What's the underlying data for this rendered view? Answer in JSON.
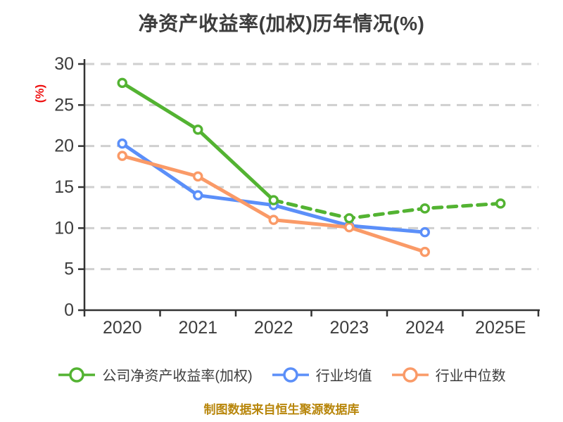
{
  "title": "净资产收益率(加权)历年情况(%)",
  "caption": "制图数据来自恒生聚源数据库",
  "colors": {
    "title_text": "#3d3d3d",
    "axis": "#333333",
    "tick_label": "#3d3d3d",
    "gridline": "#cfcfcf",
    "ylabel_red": "#ee1111",
    "caption_gold": "#b8860b",
    "series_company_green": "#53b332",
    "series_avg_blue": "#5b8ff9",
    "series_median_orange": "#fa9a67",
    "marker_fill": "#ffffff",
    "background": "#ffffff"
  },
  "chart_data": {
    "type": "line",
    "title": "净资产收益率(加权)历年情况(%)",
    "categories": [
      "2020",
      "2021",
      "2022",
      "2023",
      "2024",
      "2025E"
    ],
    "series": [
      {
        "name": "公司净资产收益率(加权)",
        "color": "#53b332",
        "values": [
          27.7,
          22.0,
          13.4,
          11.2,
          12.4,
          13.0
        ],
        "dash_from_index": 2
      },
      {
        "name": "行业均值",
        "color": "#5b8ff9",
        "values": [
          20.3,
          14.0,
          12.8,
          10.3,
          9.5,
          null
        ],
        "dash_from_index": null
      },
      {
        "name": "行业中位数",
        "color": "#fa9a67",
        "values": [
          18.8,
          16.3,
          11.0,
          10.1,
          7.1,
          null
        ],
        "dash_from_index": null
      }
    ],
    "xlabel": "",
    "ylabel": "(%)",
    "ylim": [
      0,
      30
    ],
    "ytick_step": 5,
    "yticks": [
      0,
      5,
      10,
      15,
      20,
      25,
      30
    ],
    "grid": true,
    "gridline_style": "dashed",
    "legend_position": "bottom",
    "caption": "制图数据来自恒生聚源数据库"
  }
}
